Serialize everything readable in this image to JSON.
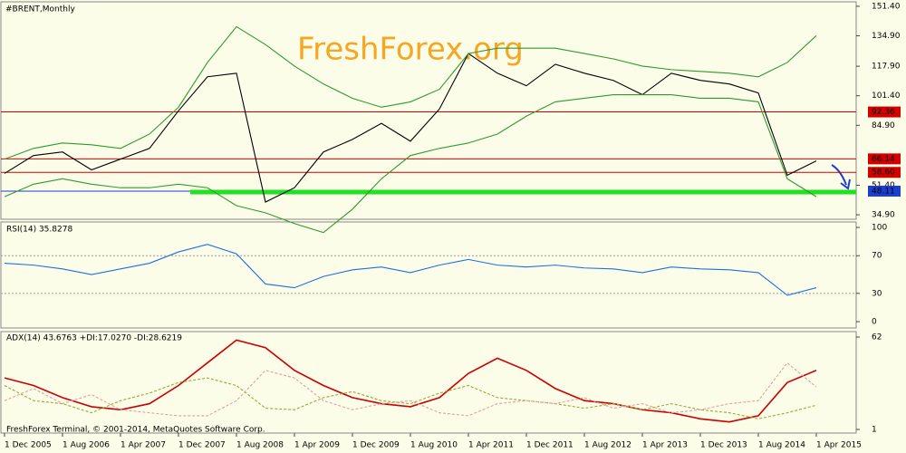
{
  "chart_data": [
    {
      "type": "line",
      "title": "#BRENT,Monthly",
      "watermark": "FreshForex.org",
      "categories": [
        "1 Dec 2005",
        null,
        "1 Aug 2006",
        null,
        "1 Apr 2007",
        null,
        "1 Dec 2007",
        null,
        "1 Aug 2008",
        null,
        "1 Apr 2009",
        null,
        "1 Dec 2009",
        null,
        "1 Aug 2010",
        null,
        "1 Apr 2011",
        null,
        "1 Dec 2011",
        null,
        "1 Aug 2012",
        null,
        "1 Apr 2013",
        null,
        "1 Dec 2013",
        null,
        "1 Aug 2014",
        null,
        "1 Apr 2015"
      ],
      "series": [
        {
          "color": "#000000",
          "values": [
            58,
            68,
            70,
            60,
            66,
            72,
            93,
            112,
            114,
            42,
            50,
            70,
            77,
            86,
            76,
            94,
            125,
            114,
            107,
            119,
            114,
            110,
            102,
            114,
            110,
            108,
            103,
            57,
            65
          ]
        },
        {
          "color": "#2e9a2e",
          "values": [
            66,
            72,
            75,
            74,
            72,
            80,
            95,
            120,
            140,
            130,
            118,
            108,
            100,
            95,
            98,
            105,
            125,
            128,
            128,
            128,
            125,
            122,
            118,
            116,
            115,
            114,
            112,
            120,
            135
          ]
        },
        {
          "color": "#2e9a2e",
          "values": [
            45,
            52,
            55,
            52,
            50,
            50,
            52,
            50,
            40,
            36,
            30,
            25,
            38,
            55,
            68,
            72,
            75,
            80,
            90,
            98,
            100,
            102,
            102,
            102,
            100,
            100,
            98,
            55,
            45
          ]
        }
      ],
      "ylim": [
        32.4,
        153.9
      ],
      "yticks": [
        {
          "value": 151.4,
          "label": "151.40"
        },
        {
          "value": 134.9,
          "label": "134.90"
        },
        {
          "value": 117.9,
          "label": "117.90"
        },
        {
          "value": 101.4,
          "label": "101.40"
        },
        {
          "value": 84.9,
          "label": "84.90"
        },
        {
          "value": 51.4,
          "label": "51.40"
        },
        {
          "value": 34.9,
          "label": "34.90"
        }
      ],
      "levels": [
        92.36,
        66.14,
        58.6,
        48.11
      ],
      "level_labels": [
        "92.36",
        "66.14",
        "58.60",
        "48.11"
      ],
      "level_colors": [
        "#d40000",
        "#d40000",
        "#d40000",
        "#1a3fd0"
      ],
      "support_level": 47.6,
      "support_color": "#22e022"
    },
    {
      "type": "line",
      "title": "RSI(14) 35.8278",
      "series": [
        {
          "color": "#1e6fe0",
          "values": [
            62,
            60,
            56,
            50,
            56,
            62,
            74,
            82,
            72,
            40,
            36,
            48,
            55,
            58,
            52,
            60,
            66,
            60,
            58,
            60,
            57,
            56,
            52,
            58,
            56,
            55,
            52,
            28,
            36
          ]
        }
      ],
      "ylim": [
        -6.7,
        105.8
      ],
      "yticks": [
        100,
        70,
        30,
        0
      ]
    },
    {
      "type": "line",
      "title": "ADX(14) 43.6763 +DI:17.0270 -DI:28.6219",
      "footer": "FreshForex Terminal, © 2001-2014, MetaQuotes Software Corp.",
      "series": [
        {
          "color": "#cc0000",
          "values": [
            35,
            30,
            22,
            16,
            14,
            18,
            30,
            45,
            60,
            55,
            40,
            30,
            22,
            18,
            16,
            22,
            38,
            48,
            40,
            28,
            20,
            18,
            14,
            12,
            8,
            6,
            10,
            32,
            40
          ]
        },
        {
          "color": "#9aa830",
          "dashed": true,
          "values": [
            30,
            20,
            18,
            12,
            20,
            25,
            32,
            35,
            30,
            15,
            14,
            22,
            26,
            20,
            18,
            25,
            30,
            22,
            20,
            18,
            15,
            18,
            14,
            18,
            14,
            12,
            8,
            12,
            17
          ]
        },
        {
          "color": "#e0a0a0",
          "dashed": true,
          "values": [
            20,
            28,
            18,
            24,
            14,
            12,
            10,
            10,
            20,
            40,
            35,
            20,
            14,
            18,
            20,
            12,
            10,
            18,
            20,
            18,
            22,
            15,
            18,
            12,
            14,
            18,
            20,
            45,
            29
          ]
        }
      ],
      "ylim": [
        -1.4,
        65.6
      ],
      "yticks": [
        62,
        1
      ]
    }
  ]
}
